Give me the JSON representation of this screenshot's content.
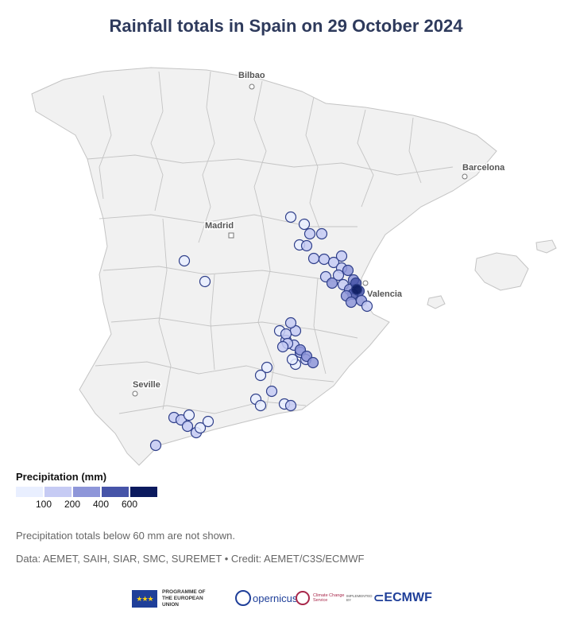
{
  "title": "Rainfall totals in Spain on 29 October 2024",
  "colors": {
    "land": "#f1f1f1",
    "border": "#c4c4c4",
    "station_stroke": "#2f3f8a"
  },
  "cities": [
    {
      "name": "Bilbao",
      "marker": "circle"
    },
    {
      "name": "Barcelona",
      "marker": "circle"
    },
    {
      "name": "Madrid",
      "marker": "square"
    },
    {
      "name": "Valencia",
      "marker": "circle"
    },
    {
      "name": "Seville",
      "marker": "circle"
    }
  ],
  "legend": {
    "title": "Precipitation (mm)",
    "bins": [
      {
        "color": "#e9efff"
      },
      {
        "color": "#c6cbf4"
      },
      {
        "color": "#8e96d9"
      },
      {
        "color": "#4654a8"
      },
      {
        "color": "#0b1a5e"
      }
    ],
    "ticks": [
      "100",
      "200",
      "400",
      "600"
    ]
  },
  "note": "Precipitation totals below 60 mm are not shown.",
  "source": "Data: AEMET, SAIH, SIAR, SMC, SUREMET • Credit: AEMET/C3S/ECMWF",
  "logos": {
    "eu_line1": "PROGRAMME OF",
    "eu_line2": "THE EUROPEAN UNION",
    "copernicus": "opernicus",
    "c3s": "Climate Change Service",
    "implemented": "IMPLEMENTED BY",
    "ecmwf": "ECMWF"
  },
  "stations_mm": [
    90,
    85,
    110,
    95,
    120,
    100,
    140,
    130,
    115,
    105,
    160,
    200,
    180,
    150,
    260,
    300,
    350,
    400,
    450,
    520,
    630,
    380,
    250,
    220,
    190,
    170,
    95,
    110,
    130,
    150,
    180,
    220,
    260,
    200,
    160,
    140,
    120,
    100,
    90,
    85,
    110,
    80,
    90,
    75,
    120,
    90,
    140,
    85,
    100,
    150,
    170,
    130,
    90,
    85,
    95,
    110,
    90,
    80
  ]
}
